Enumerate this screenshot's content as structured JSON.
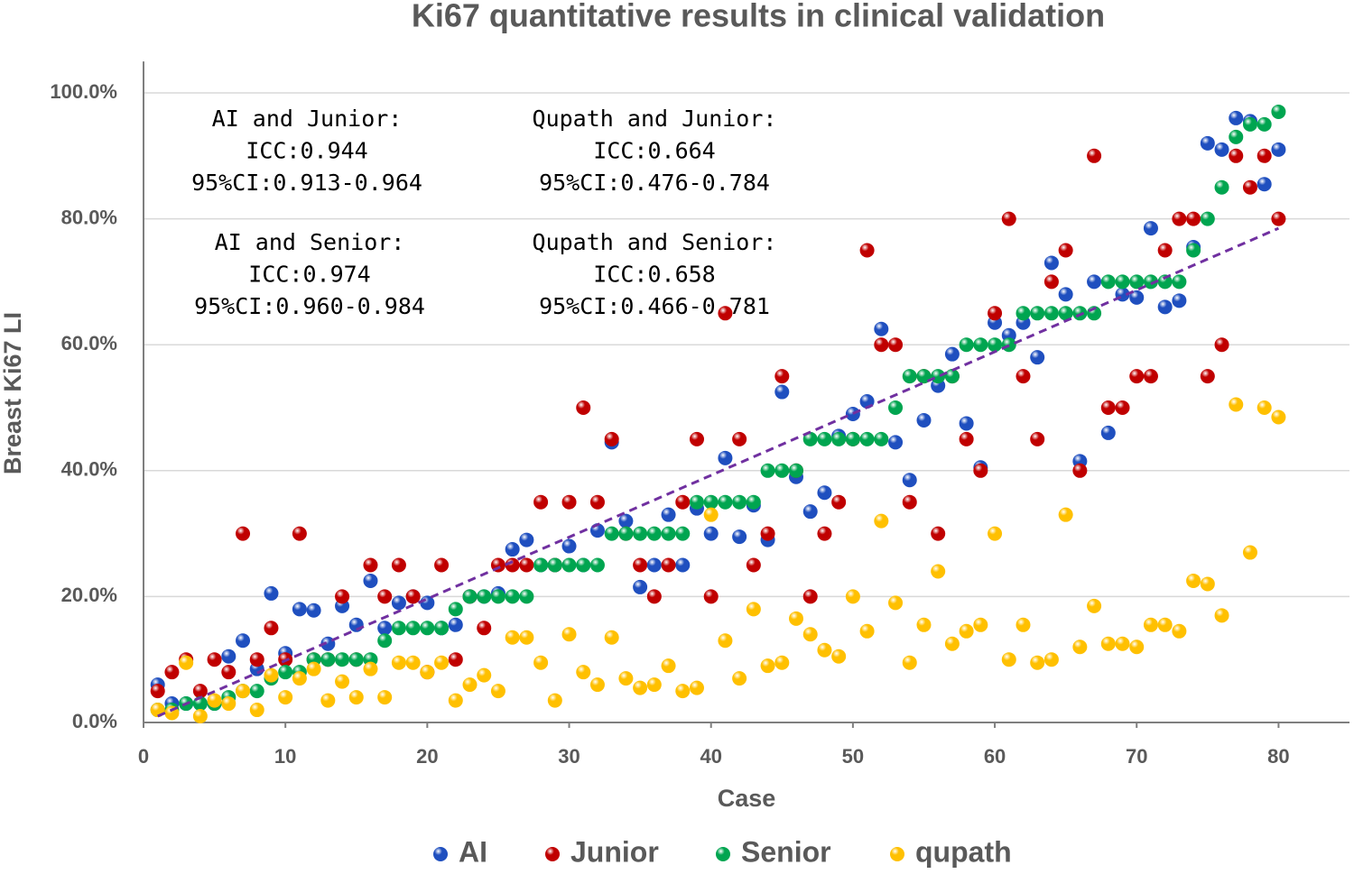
{
  "chart_data": {
    "type": "scatter",
    "title": "Ki67 quantitative results in clinical validation",
    "x_label": "Case",
    "y_label": "Breast Ki67 LI",
    "x": [
      1,
      2,
      3,
      4,
      5,
      6,
      7,
      8,
      9,
      10,
      11,
      12,
      13,
      14,
      15,
      16,
      17,
      18,
      19,
      20,
      21,
      22,
      23,
      24,
      25,
      26,
      27,
      28,
      29,
      30,
      31,
      32,
      33,
      34,
      35,
      36,
      37,
      38,
      39,
      40,
      41,
      42,
      43,
      44,
      45,
      46,
      47,
      48,
      49,
      50,
      51,
      52,
      53,
      54,
      55,
      56,
      57,
      58,
      59,
      60,
      61,
      62,
      63,
      64,
      65,
      66,
      67,
      68,
      69,
      70,
      71,
      72,
      73,
      74,
      75,
      76,
      77,
      78,
      79,
      80
    ],
    "series": [
      {
        "name": "AI",
        "color": "#1f4fbf",
        "values": [
          6,
          3,
          3,
          3,
          3,
          10.5,
          13,
          8.5,
          20.5,
          11,
          18,
          17.8,
          12.5,
          18.5,
          15.5,
          22.5,
          15,
          19,
          20,
          19,
          15,
          15.5,
          20,
          20,
          20.5,
          27.5,
          29,
          25,
          25,
          28,
          25,
          30.5,
          44.5,
          32,
          21.5,
          25,
          33,
          25,
          34,
          30,
          42,
          29.5,
          34.5,
          29,
          52.5,
          39,
          33.5,
          36.5,
          45.5,
          49,
          51,
          62.5,
          44.5,
          38.5,
          48,
          53.5,
          58.5,
          47.5,
          40.5,
          63.5,
          61.5,
          63.5,
          58,
          73,
          68,
          41.5,
          70,
          46,
          68,
          67.5,
          78.5,
          66,
          67,
          75.5,
          92,
          91,
          96,
          95.5,
          85.5,
          91
        ]
      },
      {
        "name": "Junior",
        "color": "#c00000",
        "values": [
          5,
          8,
          10,
          5,
          10,
          8,
          30,
          10,
          15,
          10,
          30,
          10,
          10,
          20,
          10,
          25,
          20,
          25,
          20,
          8,
          25,
          10,
          20,
          15,
          25,
          25,
          25,
          35,
          25,
          35,
          50,
          35,
          45,
          30,
          25,
          20,
          25,
          35,
          45,
          20,
          65,
          45,
          25,
          30,
          55,
          40,
          20,
          30,
          35,
          45,
          75,
          60,
          60,
          35,
          55,
          30,
          55,
          45,
          40,
          65,
          80,
          55,
          45,
          70,
          75,
          40,
          90,
          50,
          50,
          55,
          55,
          75,
          80,
          80,
          55,
          60,
          90,
          85,
          90,
          80
        ]
      },
      {
        "name": "Senior",
        "color": "#00a550",
        "values": [
          2,
          2,
          3,
          3,
          3,
          4,
          5,
          5,
          7,
          8,
          8,
          10,
          10,
          10,
          10,
          10,
          13,
          15,
          15,
          15,
          15,
          18,
          20,
          20,
          20,
          20,
          20,
          25,
          25,
          25,
          25,
          25,
          30,
          30,
          30,
          30,
          30,
          30,
          35,
          35,
          35,
          35,
          35,
          40,
          40,
          40,
          45,
          45,
          45,
          45,
          45,
          45,
          50,
          55,
          55,
          55,
          55,
          60,
          60,
          60,
          60,
          65,
          65,
          65,
          65,
          65,
          65,
          70,
          70,
          70,
          70,
          70,
          70,
          75,
          80,
          85,
          93,
          95,
          95,
          97
        ]
      },
      {
        "name": "qupath",
        "color": "#ffc000",
        "values": [
          2,
          1.5,
          9.5,
          1,
          3.5,
          3,
          5,
          2,
          7.5,
          4,
          7,
          8.5,
          3.5,
          6.5,
          4,
          8.5,
          4,
          9.5,
          9.5,
          8,
          9.5,
          3.5,
          6,
          7.5,
          5,
          13.5,
          13.5,
          9.5,
          3.5,
          14,
          8,
          6,
          13.5,
          7,
          5.5,
          6,
          9,
          5,
          5.5,
          33,
          13,
          7,
          18,
          9,
          9.5,
          16.5,
          14,
          11.5,
          10.5,
          20,
          14.5,
          32,
          19,
          9.5,
          15.5,
          24,
          12.5,
          14.5,
          15.5,
          30,
          10,
          15.5,
          9.5,
          10,
          33,
          12,
          18.5,
          12.5,
          12.5,
          12,
          15.5,
          15.5,
          14.5,
          22.5,
          22,
          17,
          50.5,
          27,
          50,
          48.5
        ]
      }
    ],
    "trendline": {
      "color": "#7030a0",
      "x": [
        1,
        80
      ],
      "y": [
        1,
        78.5
      ]
    },
    "annotations": [
      {
        "lines": [
          "AI and Junior:",
          "ICC:0.944",
          "95%CI:0.913-0.964"
        ]
      },
      {
        "lines": [
          "Qupath and Junior:",
          "ICC:0.664",
          "95%CI:0.476-0.784"
        ]
      },
      {
        "lines": [
          "AI and Senior:",
          "ICC:0.974",
          "95%CI:0.960-0.984"
        ]
      },
      {
        "lines": [
          "Qupath and Senior:",
          "ICC:0.658",
          "95%CI:0.466-0.781"
        ]
      }
    ],
    "xlim": [
      0,
      85
    ],
    "xticks": [
      0,
      10,
      20,
      30,
      40,
      50,
      60,
      70,
      80
    ],
    "ylim": [
      0,
      105
    ],
    "yticks": [
      {
        "value": 0,
        "label": "0.0%"
      },
      {
        "value": 20,
        "label": "20.0%"
      },
      {
        "value": 40,
        "label": "40.0%"
      },
      {
        "value": 60,
        "label": "60.0%"
      },
      {
        "value": 80,
        "label": "80.0%"
      },
      {
        "value": 100,
        "label": "100.0%"
      }
    ],
    "grid": true,
    "legend": "bottom"
  }
}
